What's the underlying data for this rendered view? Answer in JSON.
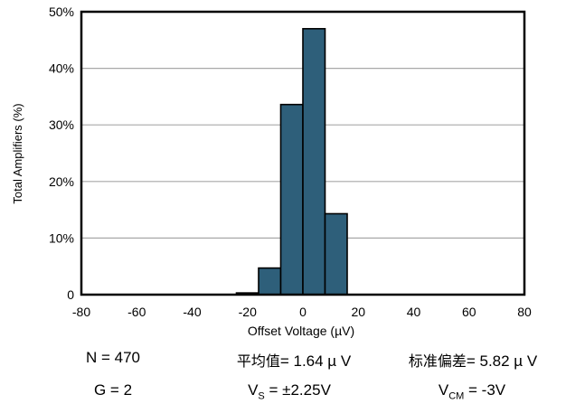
{
  "chart_data": {
    "type": "bar",
    "subtype": "histogram",
    "xlabel": "Offset Voltage (µV)",
    "ylabel": "Total Amplifiers (%)",
    "xlim": [
      -80,
      80
    ],
    "ylim": [
      0,
      50
    ],
    "x_ticks": [
      "-80",
      "-60",
      "-40",
      "-20",
      "0",
      "20",
      "40",
      "60",
      "80"
    ],
    "y_ticks": [
      "0",
      "10%",
      "20%",
      "30%",
      "40%",
      "50%"
    ],
    "bin_width": 8,
    "bins": [
      {
        "start": -24,
        "end": -16,
        "value": 0.3
      },
      {
        "start": -16,
        "end": -8,
        "value": 4.7
      },
      {
        "start": -8,
        "end": 0,
        "value": 33.6
      },
      {
        "start": 0,
        "end": 8,
        "value": 47.0
      },
      {
        "start": 8,
        "end": 16,
        "value": 14.3
      }
    ],
    "bar_color": "#2e5f7a",
    "grid": true
  },
  "stats": {
    "n": "N = 470",
    "mean_label": "平均值",
    "mean_value": "= 1.64 µ V",
    "std_label": "标准偏差",
    "std_value": "= 5.82 µ V",
    "gain": "G = 2",
    "vs_prefix": "V",
    "vs_sub": "S",
    "vs_value": " = ±2.25V",
    "vcm_prefix": "V",
    "vcm_sub": "CM",
    "vcm_value": " = -3V"
  }
}
